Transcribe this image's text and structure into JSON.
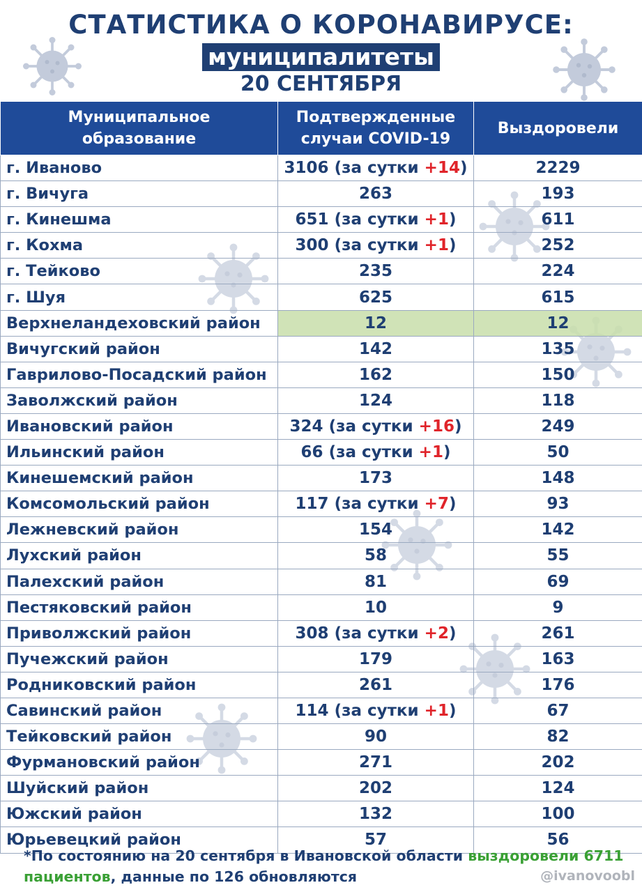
{
  "header": {
    "title": "СТАТИСТИКА О КОРОНАВИРУСЕ:",
    "subtitle": "муниципалитеты",
    "date": "20 СЕНТЯБРЯ"
  },
  "table": {
    "columns": [
      "Муниципальное образование",
      "Подтвержденные случаи COVID-19",
      "Выздоровели"
    ],
    "rows": [
      {
        "name": "г. Иваново",
        "cases": "3106",
        "daily": "+14",
        "recovered": "2229"
      },
      {
        "name": "г. Вичуга",
        "cases": "263",
        "daily": "",
        "recovered": "193"
      },
      {
        "name": "г. Кинешма",
        "cases": "651",
        "daily": "+1",
        "recovered": "611"
      },
      {
        "name": "г. Кохма",
        "cases": "300",
        "daily": "+1",
        "recovered": "252"
      },
      {
        "name": "г. Тейково",
        "cases": "235",
        "daily": "",
        "recovered": "224"
      },
      {
        "name": "г. Шуя",
        "cases": "625",
        "daily": "",
        "recovered": "615"
      },
      {
        "name": "Верхнеландеховский район",
        "cases": "12",
        "daily": "",
        "recovered": "12",
        "highlight": true
      },
      {
        "name": "Вичугский район",
        "cases": "142",
        "daily": "",
        "recovered": "135"
      },
      {
        "name": "Гаврилово-Посадский район",
        "cases": "162",
        "daily": "",
        "recovered": "150"
      },
      {
        "name": "Заволжский район",
        "cases": "124",
        "daily": "",
        "recovered": "118"
      },
      {
        "name": "Ивановский район",
        "cases": "324",
        "daily": "+16",
        "recovered": "249"
      },
      {
        "name": "Ильинский район",
        "cases": "66",
        "daily": "+1",
        "recovered": "50"
      },
      {
        "name": "Кинешемский район",
        "cases": "173",
        "daily": "",
        "recovered": "148"
      },
      {
        "name": "Комсомольский район",
        "cases": "117",
        "daily": "+7",
        "recovered": "93"
      },
      {
        "name": "Лежневский район",
        "cases": "154",
        "daily": "",
        "recovered": "142"
      },
      {
        "name": "Лухский район",
        "cases": "58",
        "daily": "",
        "recovered": "55"
      },
      {
        "name": "Палехский район",
        "cases": "81",
        "daily": "",
        "recovered": "69"
      },
      {
        "name": "Пестяковский район",
        "cases": "10",
        "daily": "",
        "recovered": "9"
      },
      {
        "name": "Приволжский район",
        "cases": "308",
        "daily": "+2",
        "recovered": "261"
      },
      {
        "name": "Пучежский район",
        "cases": "179",
        "daily": "",
        "recovered": "163"
      },
      {
        "name": "Родниковский район",
        "cases": "261",
        "daily": "",
        "recovered": "176"
      },
      {
        "name": "Савинский район",
        "cases": "114",
        "daily": "+1",
        "recovered": "67"
      },
      {
        "name": "Тейковский район",
        "cases": "90",
        "daily": "",
        "recovered": "82"
      },
      {
        "name": "Фурмановский район",
        "cases": "271",
        "daily": "",
        "recovered": "202"
      },
      {
        "name": "Шуйский район",
        "cases": "202",
        "daily": "",
        "recovered": "124"
      },
      {
        "name": "Южский район",
        "cases": "132",
        "daily": "",
        "recovered": "100"
      },
      {
        "name": "Юрьевецкий район",
        "cases": "57",
        "daily": "",
        "recovered": "56"
      }
    ],
    "daily_open": "(за сутки ",
    "daily_close": ")"
  },
  "footnote": {
    "part1": "*По состоянию на 20 сентября в Ивановской области ",
    "green1": "выздоровели 6711 пациентов",
    "part2": ", данные по 126 обновляются"
  },
  "handle": "@ivanovoobl",
  "colors": {
    "navy": "#1f3f73",
    "header_blue": "#1f4b99",
    "red": "#e0242a",
    "green": "#3aa035",
    "highlight": "#c8deaa"
  },
  "decor": {
    "icon": "virus-icon"
  }
}
